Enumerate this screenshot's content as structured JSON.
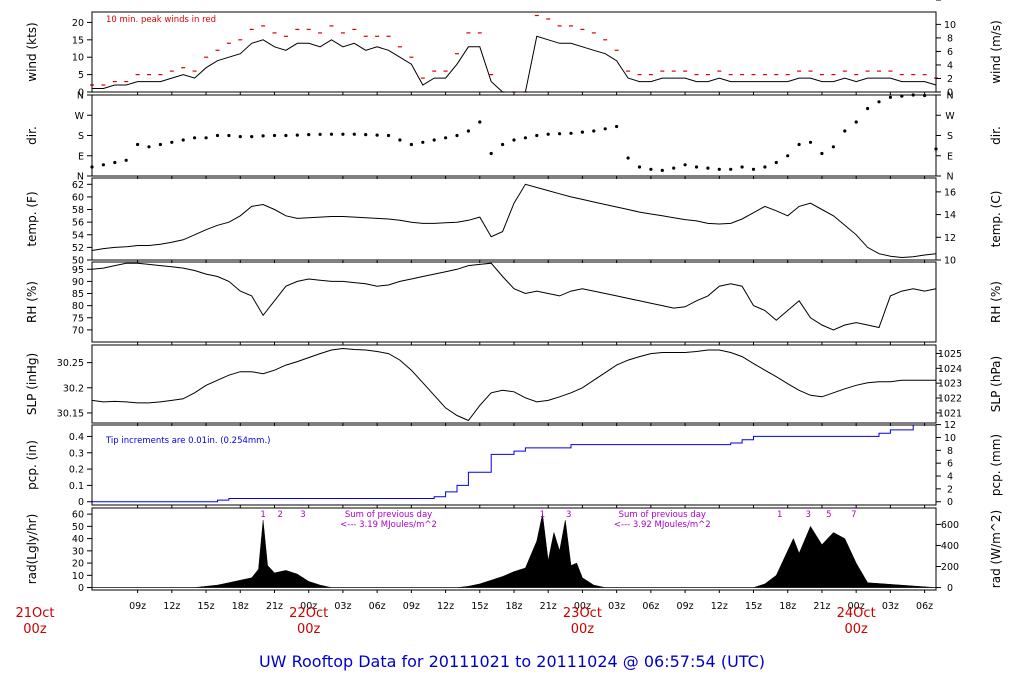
{
  "title": "UW Rooftop Data for 20111021  to  20111024 @ 06:57:54  (UTC)",
  "colors": {
    "frame": "#000000",
    "peak": "#dd0000",
    "precip": "#0000ee",
    "solar_text": "#aa00cc",
    "date": "#cc0000",
    "title": "#0000cc"
  },
  "time_axis": {
    "start_hour": 5,
    "end_hour": 79,
    "ticks": [
      {
        "hour": 9,
        "label": "09z"
      },
      {
        "hour": 12,
        "label": "12z"
      },
      {
        "hour": 15,
        "label": "15z"
      },
      {
        "hour": 18,
        "label": "18z"
      },
      {
        "hour": 21,
        "label": "21z"
      },
      {
        "hour": 24,
        "label": "00z"
      },
      {
        "hour": 27,
        "label": "03z"
      },
      {
        "hour": 30,
        "label": "06z"
      },
      {
        "hour": 33,
        "label": "09z"
      },
      {
        "hour": 36,
        "label": "12z"
      },
      {
        "hour": 39,
        "label": "15z"
      },
      {
        "hour": 42,
        "label": "18z"
      },
      {
        "hour": 45,
        "label": "21z"
      },
      {
        "hour": 48,
        "label": "00z"
      },
      {
        "hour": 51,
        "label": "03z"
      },
      {
        "hour": 54,
        "label": "06z"
      },
      {
        "hour": 57,
        "label": "09z"
      },
      {
        "hour": 60,
        "label": "12z"
      },
      {
        "hour": 63,
        "label": "15z"
      },
      {
        "hour": 66,
        "label": "18z"
      },
      {
        "hour": 69,
        "label": "21z"
      },
      {
        "hour": 72,
        "label": "00z"
      },
      {
        "hour": 75,
        "label": "03z"
      },
      {
        "hour": 78,
        "label": "06z"
      }
    ],
    "dates": [
      {
        "hour": 0,
        "date": "21Oct",
        "sub": "00z"
      },
      {
        "hour": 24,
        "date": "22Oct",
        "sub": "00z"
      },
      {
        "hour": 48,
        "date": "23Oct",
        "sub": "00z"
      },
      {
        "hour": 72,
        "date": "24Oct",
        "sub": "00z"
      }
    ]
  },
  "chart_data": [
    {
      "id": "wind",
      "type": "line",
      "left_label": "wind (kts)",
      "right_label": "wind (m/s)",
      "ylim": [
        0,
        23
      ],
      "left_ticks": [
        0,
        5,
        10,
        15,
        20
      ],
      "right_ticks": [
        0,
        2,
        4,
        6,
        8,
        10
      ],
      "right_factor": 0.5144,
      "annotation": "10 min. peak winds in red",
      "x": [
        5,
        6,
        7,
        8,
        9,
        10,
        11,
        12,
        13,
        14,
        15,
        16,
        17,
        18,
        19,
        20,
        21,
        22,
        23,
        24,
        25,
        26,
        27,
        28,
        29,
        30,
        31,
        32,
        33,
        34,
        35,
        36,
        37,
        38,
        39,
        40,
        41,
        42,
        43,
        44,
        45,
        46,
        47,
        48,
        49,
        50,
        51,
        52,
        53,
        54,
        55,
        56,
        57,
        58,
        59,
        60,
        61,
        62,
        63,
        64,
        65,
        66,
        67,
        68,
        69,
        70,
        71,
        72,
        73,
        74,
        75,
        76,
        77,
        78,
        79
      ],
      "y": [
        1,
        1,
        2,
        2,
        3,
        3,
        3,
        4,
        5,
        4,
        7,
        9,
        10,
        11,
        14,
        15,
        13,
        12,
        14,
        14,
        13,
        15,
        13,
        14,
        12,
        13,
        12,
        10,
        8,
        2,
        4,
        4,
        8,
        13,
        13,
        3,
        0,
        0,
        0,
        16,
        15,
        14,
        14,
        13,
        12,
        11,
        9,
        4,
        3,
        3,
        4,
        4,
        4,
        3,
        3,
        4,
        3,
        3,
        3,
        3,
        3,
        3,
        4,
        4,
        3,
        3,
        4,
        3,
        4,
        4,
        4,
        3,
        3,
        3,
        2
      ],
      "peak_x": [
        5,
        6,
        7,
        8,
        9,
        10,
        11,
        12,
        13,
        14,
        15,
        16,
        17,
        18,
        19,
        20,
        21,
        22,
        23,
        24,
        25,
        26,
        27,
        28,
        29,
        30,
        31,
        32,
        33,
        34,
        35,
        36,
        37,
        38,
        39,
        40,
        41,
        42,
        43,
        44,
        45,
        46,
        47,
        48,
        49,
        50,
        51,
        52,
        53,
        54,
        55,
        56,
        57,
        58,
        59,
        60,
        61,
        62,
        63,
        64,
        65,
        66,
        67,
        68,
        69,
        70,
        71,
        72,
        73,
        74,
        75,
        76,
        77,
        78,
        79
      ],
      "peak_y": [
        2,
        2,
        3,
        3,
        5,
        5,
        5,
        6,
        7,
        6,
        10,
        12,
        14,
        15,
        18,
        19,
        17,
        16,
        18,
        18,
        17,
        19,
        17,
        18,
        16,
        16,
        16,
        13,
        10,
        4,
        6,
        6,
        11,
        17,
        17,
        5,
        0,
        0,
        0,
        22,
        21,
        19,
        19,
        18,
        17,
        15,
        12,
        6,
        5,
        5,
        6,
        6,
        6,
        5,
        5,
        6,
        5,
        5,
        5,
        5,
        5,
        5,
        6,
        6,
        5,
        5,
        6,
        5,
        6,
        6,
        6,
        5,
        5,
        5,
        4
      ]
    },
    {
      "id": "dir",
      "type": "scatter",
      "left_label": "dir.",
      "right_label": "dir.",
      "ylim": [
        0,
        360
      ],
      "left_ticks": [
        "N",
        "E",
        "S",
        "W",
        "N"
      ],
      "right_ticks": [
        "N",
        "E",
        "S",
        "W",
        "N"
      ],
      "x": [
        5,
        6,
        7,
        8,
        9,
        10,
        11,
        12,
        13,
        14,
        15,
        16,
        17,
        18,
        19,
        20,
        21,
        22,
        23,
        24,
        25,
        26,
        27,
        28,
        29,
        30,
        31,
        32,
        33,
        34,
        35,
        36,
        37,
        38,
        39,
        40,
        41,
        42,
        43,
        44,
        45,
        46,
        47,
        48,
        49,
        50,
        51,
        52,
        53,
        54,
        55,
        56,
        57,
        58,
        59,
        60,
        61,
        62,
        63,
        64,
        65,
        66,
        67,
        68,
        69,
        70,
        71,
        72,
        73,
        74,
        75,
        76,
        77,
        78,
        79
      ],
      "y": [
        40,
        50,
        60,
        70,
        140,
        130,
        140,
        150,
        160,
        170,
        170,
        180,
        180,
        175,
        175,
        178,
        180,
        180,
        182,
        184,
        185,
        186,
        186,
        186,
        184,
        182,
        180,
        160,
        140,
        150,
        160,
        170,
        180,
        200,
        240,
        100,
        140,
        160,
        170,
        180,
        186,
        188,
        190,
        195,
        200,
        210,
        220,
        80,
        40,
        30,
        25,
        35,
        50,
        40,
        35,
        30,
        30,
        40,
        30,
        40,
        60,
        90,
        140,
        150,
        100,
        130,
        200,
        240,
        300,
        330,
        350,
        355,
        360,
        358,
        120
      ]
    },
    {
      "id": "temp",
      "type": "line",
      "left_label": "temp. (F)",
      "right_label": "temp. (C)",
      "ylim": [
        50,
        63
      ],
      "left_ticks": [
        50,
        52,
        54,
        56,
        58,
        60,
        62
      ],
      "right_ticks": [
        10,
        12,
        14,
        16
      ],
      "right_factor": "celsius",
      "x": [
        5,
        6,
        7,
        8,
        9,
        10,
        11,
        12,
        13,
        14,
        15,
        16,
        17,
        18,
        19,
        20,
        21,
        22,
        23,
        24,
        25,
        26,
        27,
        28,
        29,
        30,
        31,
        32,
        33,
        34,
        35,
        36,
        37,
        38,
        39,
        40,
        41,
        42,
        43,
        44,
        45,
        46,
        47,
        48,
        49,
        50,
        51,
        52,
        53,
        54,
        55,
        56,
        57,
        58,
        59,
        60,
        61,
        62,
        63,
        64,
        65,
        66,
        67,
        68,
        69,
        70,
        71,
        72,
        73,
        74,
        75,
        76,
        77,
        78,
        79
      ],
      "y": [
        51.5,
        51.8,
        52,
        52.1,
        52.3,
        52.3,
        52.5,
        52.8,
        53.2,
        54,
        54.8,
        55.5,
        56,
        57,
        58.5,
        58.8,
        58,
        57,
        56.6,
        56.7,
        56.8,
        56.9,
        56.9,
        56.8,
        56.7,
        56.6,
        56.5,
        56.3,
        56,
        55.8,
        55.8,
        55.9,
        56,
        56.3,
        56.8,
        53.7,
        54.5,
        59,
        62,
        61.5,
        61,
        60.5,
        60,
        59.6,
        59.2,
        58.8,
        58.4,
        58,
        57.6,
        57.3,
        57,
        56.7,
        56.4,
        56.2,
        55.8,
        55.7,
        55.8,
        56.5,
        57.5,
        58.5,
        57.8,
        57,
        58.5,
        59,
        58,
        57,
        55.5,
        54,
        52,
        51,
        50.6,
        50.4,
        50.5,
        50.8,
        51
      ]
    },
    {
      "id": "rh",
      "type": "line",
      "left_label": "RH (%)",
      "right_label": "RH (%)",
      "ylim": [
        65,
        98
      ],
      "left_ticks": [
        70,
        75,
        80,
        85,
        90,
        95
      ],
      "right_ticks": [
        70,
        75,
        80,
        85,
        90,
        95
      ],
      "x": [
        5,
        6,
        7,
        8,
        9,
        10,
        11,
        12,
        13,
        14,
        15,
        16,
        17,
        18,
        19,
        20,
        21,
        22,
        23,
        24,
        25,
        26,
        27,
        28,
        29,
        30,
        31,
        32,
        33,
        34,
        35,
        36,
        37,
        38,
        39,
        40,
        41,
        42,
        43,
        44,
        45,
        46,
        47,
        48,
        49,
        50,
        51,
        52,
        53,
        54,
        55,
        56,
        57,
        58,
        59,
        60,
        61,
        62,
        63,
        64,
        65,
        66,
        67,
        68,
        69,
        70,
        71,
        72,
        73,
        74,
        75,
        76,
        77,
        78,
        79
      ],
      "y": [
        95,
        95.5,
        96.5,
        97.5,
        97.5,
        97,
        96.5,
        96,
        95.5,
        94.5,
        93,
        92,
        90,
        86,
        84,
        76,
        82,
        88,
        90,
        91,
        90.5,
        90,
        90,
        89.5,
        89,
        88,
        88.5,
        90,
        91,
        92,
        93,
        94,
        95,
        96.5,
        97,
        97.5,
        92,
        87,
        85,
        86,
        85,
        84,
        86,
        87,
        86,
        85,
        84,
        83,
        82,
        81,
        80,
        79,
        79.5,
        82,
        84,
        88,
        89,
        88,
        80,
        78,
        74,
        78,
        82,
        75,
        72,
        70,
        72,
        73,
        72,
        71,
        84,
        86,
        87,
        86,
        87
      ]
    },
    {
      "id": "slp",
      "type": "line",
      "left_label": "SLP (inHg)",
      "right_label": "SLP (hPa)",
      "ylim": [
        30.13,
        30.285
      ],
      "left_ticks": [
        30.15,
        30.2,
        30.25
      ],
      "right_ticks": [
        1021,
        1022,
        1023,
        1024,
        1025
      ],
      "right_factor": "hpa",
      "x": [
        5,
        6,
        7,
        8,
        9,
        10,
        11,
        12,
        13,
        14,
        15,
        16,
        17,
        18,
        19,
        20,
        21,
        22,
        23,
        24,
        25,
        26,
        27,
        28,
        29,
        30,
        31,
        32,
        33,
        34,
        35,
        36,
        37,
        38,
        39,
        40,
        41,
        42,
        43,
        44,
        45,
        46,
        47,
        48,
        49,
        50,
        51,
        52,
        53,
        54,
        55,
        56,
        57,
        58,
        59,
        60,
        61,
        62,
        63,
        64,
        65,
        66,
        67,
        68,
        69,
        70,
        71,
        72,
        73,
        74,
        75,
        76,
        77,
        78,
        79
      ],
      "y": [
        30.175,
        30.172,
        30.173,
        30.172,
        30.17,
        30.17,
        30.172,
        30.175,
        30.178,
        30.19,
        30.205,
        30.215,
        30.225,
        30.232,
        30.232,
        30.228,
        30.235,
        30.245,
        30.252,
        30.26,
        30.268,
        30.275,
        30.278,
        30.276,
        30.275,
        30.272,
        30.268,
        30.255,
        30.235,
        30.21,
        30.185,
        30.16,
        30.145,
        30.135,
        30.165,
        30.19,
        30.195,
        30.192,
        30.18,
        30.172,
        30.175,
        30.182,
        30.19,
        30.2,
        30.215,
        30.23,
        30.245,
        30.255,
        30.262,
        30.268,
        30.27,
        30.27,
        30.27,
        30.272,
        30.275,
        30.275,
        30.27,
        30.262,
        30.248,
        30.235,
        30.222,
        30.208,
        30.195,
        30.185,
        30.182,
        30.19,
        30.198,
        30.205,
        30.21,
        30.212,
        30.212,
        30.215,
        30.215,
        30.215,
        30.215
      ]
    },
    {
      "id": "pcp",
      "type": "step",
      "left_label": "pcp. (in)",
      "right_label": "pcp. (mm)",
      "ylim": [
        -0.02,
        0.47
      ],
      "left_ticks": [
        0,
        0.1,
        0.2,
        0.3,
        0.4
      ],
      "right_ticks": [
        0,
        2,
        4,
        6,
        8,
        10,
        12
      ],
      "right_factor": 25.4,
      "annotation": "Tip increments are 0.01in. (0.254mm.)",
      "x": [
        5,
        15,
        16,
        17,
        18,
        30,
        33,
        34,
        35,
        36,
        37,
        38,
        40,
        41,
        42,
        43,
        47,
        55,
        60,
        61,
        62,
        63,
        71,
        73,
        74,
        75,
        76,
        77,
        78,
        79
      ],
      "y": [
        0,
        0,
        0.01,
        0.02,
        0.02,
        0.02,
        0.02,
        0.02,
        0.03,
        0.06,
        0.1,
        0.18,
        0.29,
        0.29,
        0.31,
        0.33,
        0.35,
        0.35,
        0.35,
        0.36,
        0.38,
        0.4,
        0.4,
        0.4,
        0.42,
        0.44,
        0.44,
        0.47,
        0.47,
        0.47
      ]
    },
    {
      "id": "rad",
      "type": "area",
      "left_label": "rad(Lgly/hr)",
      "right_label": "rad (W/m^2)",
      "ylim": [
        -2,
        65
      ],
      "left_ticks": [
        0,
        10,
        20,
        30,
        40,
        50,
        60
      ],
      "right_ticks": [
        0,
        200,
        400,
        600
      ],
      "right_factor": 11.63,
      "annotations": [
        {
          "hour": 31,
          "text": "Sum of previous day"
        },
        {
          "hour": 31,
          "text": "<--- 3.19 MJoules/m^2"
        },
        {
          "hour": 55,
          "text": "Sum of previous day"
        },
        {
          "hour": 55,
          "text": "<--- 3.92 MJoules/m^2"
        }
      ],
      "markers": [
        {
          "hour": 20,
          "label": "1"
        },
        {
          "hour": 21.5,
          "label": "2"
        },
        {
          "hour": 23.5,
          "label": "3"
        },
        {
          "hour": 44.5,
          "label": "1"
        },
        {
          "hour": 46.8,
          "label": "3"
        },
        {
          "hour": 65.3,
          "label": "1"
        },
        {
          "hour": 67.8,
          "label": "3"
        },
        {
          "hour": 69.6,
          "label": "5"
        },
        {
          "hour": 71.8,
          "label": "7"
        }
      ],
      "x": [
        5,
        14,
        15,
        16,
        17,
        18,
        19,
        19.6,
        20,
        20.4,
        21,
        22,
        23,
        24,
        25,
        26,
        37,
        38,
        39,
        40,
        41,
        42,
        43,
        44,
        44.5,
        45,
        45.5,
        46,
        46.5,
        47,
        47.5,
        48,
        49,
        50,
        63,
        64,
        65,
        66,
        66.5,
        67,
        68,
        69,
        70,
        71,
        72,
        73,
        79
      ],
      "y": [
        0,
        0,
        1,
        2,
        4,
        6,
        8,
        15,
        55,
        18,
        12,
        14,
        11,
        5,
        2,
        0,
        0,
        1,
        3,
        6,
        9,
        13,
        16,
        38,
        60,
        22,
        45,
        30,
        55,
        18,
        20,
        8,
        2,
        0,
        0,
        3,
        10,
        30,
        40,
        28,
        50,
        35,
        45,
        40,
        20,
        4,
        0
      ]
    }
  ]
}
